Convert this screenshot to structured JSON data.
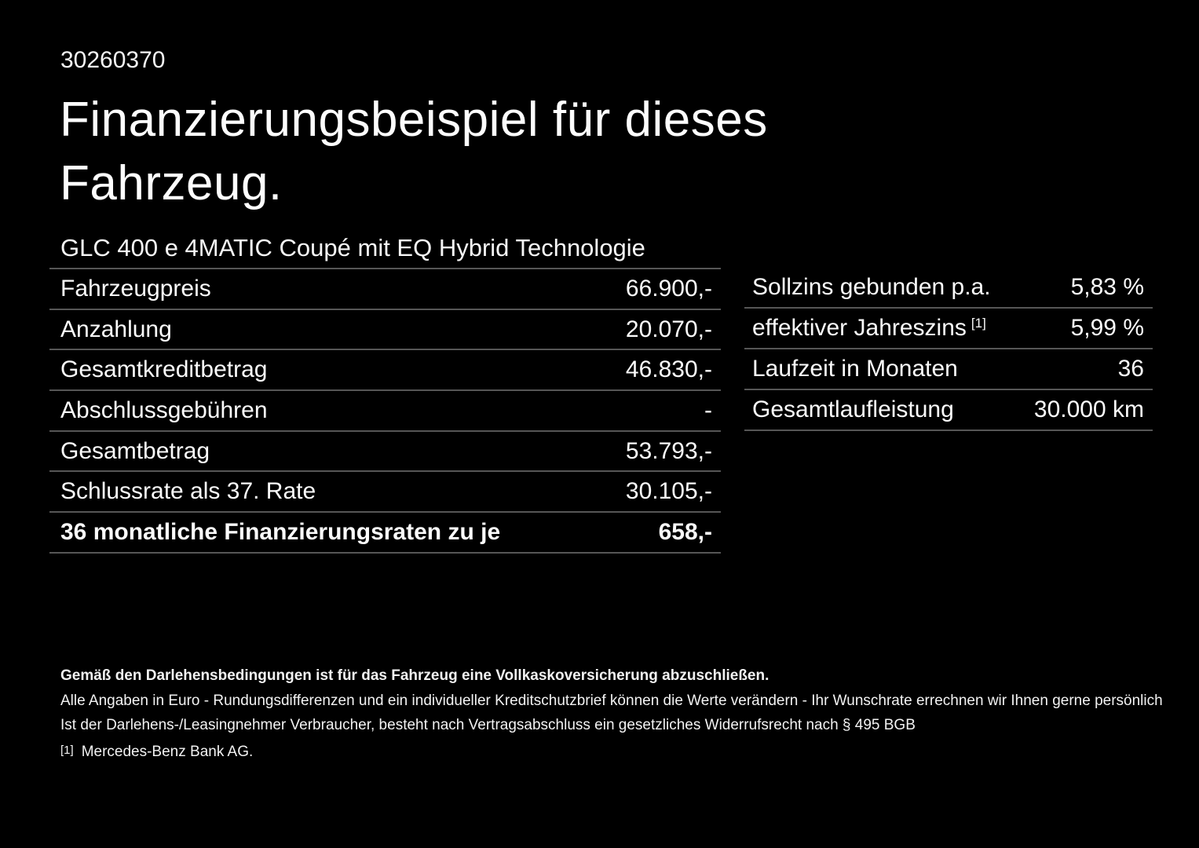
{
  "page": {
    "doc_id": "30260370",
    "title_lines": [
      "Finanzierungsbeispiel für dieses",
      "Fahrzeug."
    ],
    "vehicle_name": "GLC 400 e 4MATIC Coupé mit EQ Hybrid Technologie"
  },
  "finance_table": {
    "rows": [
      {
        "label": "Fahrzeugpreis",
        "value": "66.900,-"
      },
      {
        "label": "Anzahlung",
        "value": "20.070,-"
      },
      {
        "label": "Gesamtkreditbetrag",
        "value": "46.830,-"
      },
      {
        "label": "Abschlussgebühren",
        "value": "-"
      },
      {
        "label": "Gesamtbetrag",
        "value": "53.793,-"
      },
      {
        "label": "Schlussrate als 37. Rate",
        "value": "30.105,-"
      },
      {
        "label": "36 monatliche Finanzierungsraten zu je",
        "value": "658,-"
      }
    ]
  },
  "conditions_table": {
    "rows": [
      {
        "label": "Sollzins gebunden p.a.",
        "value": "5,83 %"
      },
      {
        "label": "effektiver Jahreszins",
        "sup": "[1]",
        "value": "5,99 %"
      },
      {
        "label": "Laufzeit in Monaten",
        "value": "36"
      },
      {
        "label": "Gesamtlaufleistung",
        "value": "30.000 km"
      }
    ]
  },
  "footnotes": {
    "insurance": "Gemäß den Darlehensbedingungen ist für das Fahrzeug eine Vollkaskoversicherung abzuschließen.",
    "disclaimer": "Alle Angaben in Euro - Rundungsdifferenzen und ein individueller Kreditschutzbrief können die Werte verändern - Ihr Wunschrate errechnen wir Ihnen gerne persönlich",
    "withdrawal": "Ist der Darlehens-/Leasingnehmer Verbraucher, besteht nach Vertragsabschluss ein gesetzliches Widerrufsrecht nach § 495 BGB",
    "ref_marker": "[1]",
    "ref_text": "Mercedes-Benz Bank AG."
  }
}
